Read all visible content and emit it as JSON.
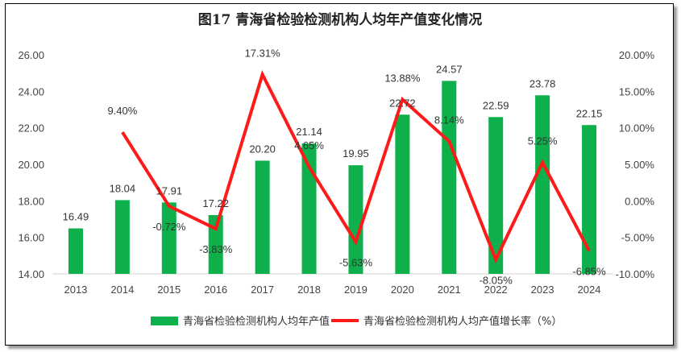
{
  "chart_data": {
    "type": "bar+line",
    "title": "图17 青海省检验检测机构人均年产值变化情况",
    "categories": [
      "2013",
      "2014",
      "2015",
      "2016",
      "2017",
      "2018",
      "2019",
      "2020",
      "2021",
      "2022",
      "2023",
      "2024"
    ],
    "series": [
      {
        "name": "青海省检验检测机构人均年产值",
        "type": "bar",
        "axis": "left",
        "color": "#0db04b",
        "values": [
          16.49,
          18.04,
          17.91,
          17.22,
          20.2,
          21.14,
          19.95,
          22.72,
          24.57,
          22.59,
          23.78,
          22.15
        ],
        "labels": [
          "16.49",
          "18.04",
          "17.91",
          "17.22",
          "20.20",
          "21.14",
          "19.95",
          "22.72",
          "24.57",
          "22.59",
          "23.78",
          "22.15"
        ]
      },
      {
        "name": "青海省检验检测机构人均产值增长率（%）",
        "type": "line",
        "axis": "right",
        "color": "#ff1a1a",
        "values": [
          null,
          9.4,
          -0.72,
          -3.83,
          17.31,
          4.65,
          -5.63,
          13.88,
          8.14,
          -8.05,
          5.25,
          -6.85
        ],
        "labels": [
          "",
          "9.40%",
          "-0.72%",
          "-3.83%",
          "17.31%",
          "4.65%",
          "-5.63%",
          "13.88%",
          "8.14%",
          "-8.05%",
          "5.25%",
          "-6.85%"
        ]
      }
    ],
    "y_left": {
      "min": 14,
      "max": 26,
      "step": 2,
      "ticks": [
        "14.00",
        "16.00",
        "18.00",
        "20.00",
        "22.00",
        "24.00",
        "26.00"
      ]
    },
    "y_right": {
      "min": -10,
      "max": 20,
      "step": 5,
      "ticks": [
        "-10.00%",
        "-5.00%",
        "0.00%",
        "5.00%",
        "10.00%",
        "15.00%",
        "20.00%"
      ]
    },
    "grid": false,
    "legend_position": "bottom"
  }
}
